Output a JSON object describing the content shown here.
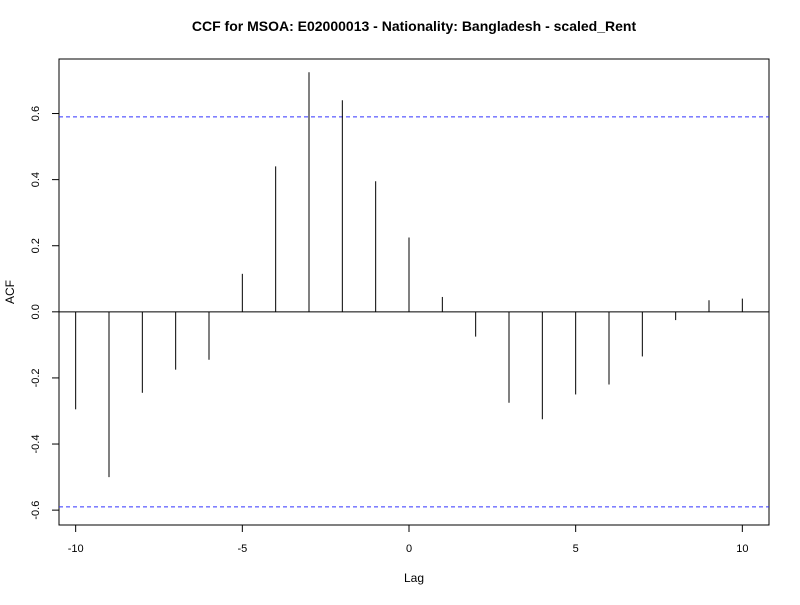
{
  "chart_data": {
    "type": "bar",
    "title": "CCF for MSOA: E02000013 - Nationality: Bangladesh - scaled_Rent",
    "xlabel": "Lag",
    "ylabel": "ACF",
    "xlim": [
      -10.5,
      10.8
    ],
    "ylim": [
      -0.645,
      0.765
    ],
    "x_ticks": [
      -10,
      -5,
      0,
      5,
      10
    ],
    "x_tick_labels": [
      "-10",
      "-5",
      "0",
      "5",
      "10"
    ],
    "y_ticks": [
      -0.6,
      -0.4,
      -0.2,
      0.0,
      0.2,
      0.4,
      0.6
    ],
    "y_tick_labels": [
      "-0.6",
      "-0.4",
      "-0.2",
      "0.0",
      "0.2",
      "0.4",
      "0.6"
    ],
    "lags": [
      -10,
      -9,
      -8,
      -7,
      -6,
      -5,
      -4,
      -3,
      -2,
      -1,
      0,
      1,
      2,
      3,
      4,
      5,
      6,
      7,
      8,
      9,
      10
    ],
    "values": [
      -0.295,
      -0.5,
      -0.245,
      -0.175,
      -0.145,
      0.115,
      0.44,
      0.725,
      0.64,
      0.395,
      0.225,
      0.045,
      -0.075,
      -0.275,
      -0.325,
      -0.25,
      -0.22,
      -0.135,
      -0.025,
      0.035,
      0.04
    ],
    "confidence_bound": 0.59,
    "grid": false,
    "colors": {
      "lines": "#000000",
      "confidence": "#3333ff",
      "background": "#ffffff"
    }
  }
}
